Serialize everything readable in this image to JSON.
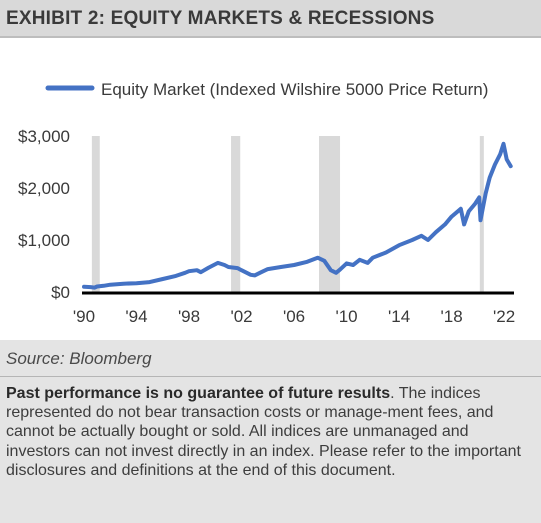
{
  "header": {
    "title": "EXHIBIT 2: EQUITY MARKETS & RECESSIONS"
  },
  "chart_data": {
    "type": "line",
    "legend": "Equity Market (Indexed Wilshire 5000 Price Return)",
    "legend_position": "top",
    "x_tick_labels": [
      "'90",
      "'94",
      "'98",
      "'02",
      "'06",
      "'10",
      "'14",
      "'18",
      "'22"
    ],
    "x_ticks": [
      1990,
      1994,
      1998,
      2002,
      2006,
      2010,
      2014,
      2018,
      2022
    ],
    "y_tick_labels": [
      "$0",
      "$1,000",
      "$2,000",
      "$3,000"
    ],
    "y_ticks": [
      0,
      1000,
      2000,
      3000
    ],
    "xlim": [
      1990,
      2022.6
    ],
    "ylim": [
      0,
      3000
    ],
    "recessions": [
      {
        "start": 1990.6,
        "end": 1991.2
      },
      {
        "start": 2001.2,
        "end": 2001.9
      },
      {
        "start": 2007.9,
        "end": 2009.5
      },
      {
        "start": 2020.15,
        "end": 2020.45
      }
    ],
    "series": [
      {
        "name": "Equity Market (Indexed Wilshire 5000 Price Return)",
        "color": "#4472c4",
        "x": [
          1990.0,
          1990.5,
          1990.8,
          1991.0,
          1991.5,
          1992.0,
          1993.0,
          1994.0,
          1995.0,
          1996.0,
          1997.0,
          1997.7,
          1998.0,
          1998.6,
          1998.9,
          1999.5,
          2000.2,
          2000.7,
          2001.0,
          2001.7,
          2002.0,
          2002.7,
          2003.0,
          2003.5,
          2004.0,
          2005.0,
          2006.0,
          2007.0,
          2007.8,
          2008.3,
          2008.8,
          2009.2,
          2009.5,
          2010.0,
          2010.5,
          2011.0,
          2011.6,
          2012.0,
          2013.0,
          2014.0,
          2015.0,
          2015.7,
          2016.2,
          2016.8,
          2017.5,
          2018.0,
          2018.7,
          2018.95,
          2019.3,
          2019.8,
          2020.1,
          2020.2,
          2020.6,
          2020.9,
          2021.3,
          2021.7,
          2021.95,
          2022.2,
          2022.5
        ],
        "values": [
          100,
          95,
          85,
          105,
          120,
          140,
          160,
          170,
          190,
          250,
          310,
          370,
          400,
          420,
          380,
          470,
          560,
          520,
          480,
          460,
          420,
          330,
          320,
          380,
          440,
          480,
          520,
          580,
          660,
          600,
          420,
          370,
          430,
          550,
          520,
          620,
          560,
          660,
          760,
          900,
          1000,
          1080,
          1000,
          1150,
          1300,
          1450,
          1600,
          1300,
          1550,
          1700,
          1820,
          1380,
          1900,
          2200,
          2450,
          2650,
          2850,
          2550,
          2420
        ]
      }
    ]
  },
  "source": "Source: Bloomberg",
  "disclaimer": {
    "bold": "Past performance is no guarantee of future results",
    "text": ". The indices represented do not bear transaction costs or manage-ment fees, and cannot be actually bought or sold. All indices are unmanaged and investors can not invest directly in an index. Please refer to the important disclosures and definitions at the end of this document."
  }
}
